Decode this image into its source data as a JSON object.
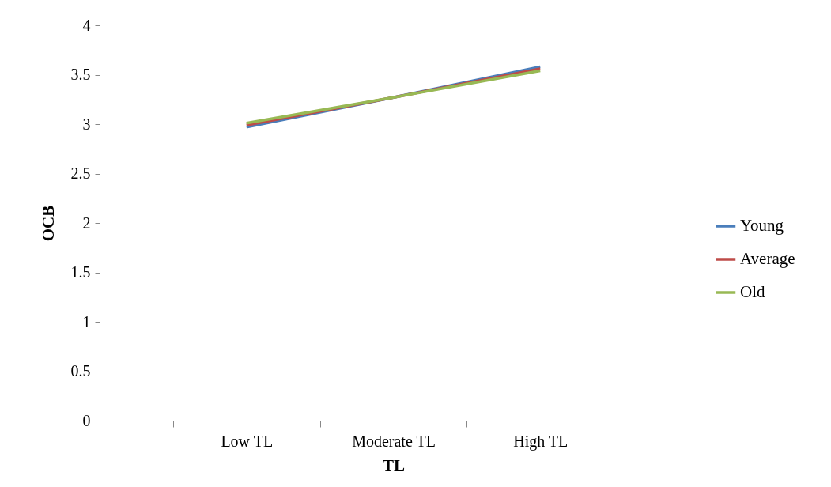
{
  "chart_data": {
    "type": "line",
    "xlabel": "TL",
    "ylabel": "OCB",
    "categories": [
      "Low TL",
      "Moderate TL",
      "High TL"
    ],
    "series": [
      {
        "name": "Young",
        "color": "#4a7ebb",
        "values": [
          2.97,
          3.27,
          3.58
        ]
      },
      {
        "name": "Average",
        "color": "#be4b48",
        "values": [
          2.99,
          3.27,
          3.56
        ]
      },
      {
        "name": "Old",
        "color": "#98b954",
        "values": [
          3.01,
          3.27,
          3.54
        ]
      }
    ],
    "ylim": [
      0,
      4
    ],
    "yticks": [
      0,
      0.5,
      1,
      1.5,
      2,
      2.5,
      3,
      3.5,
      4
    ],
    "grid": false,
    "legend": "right"
  }
}
